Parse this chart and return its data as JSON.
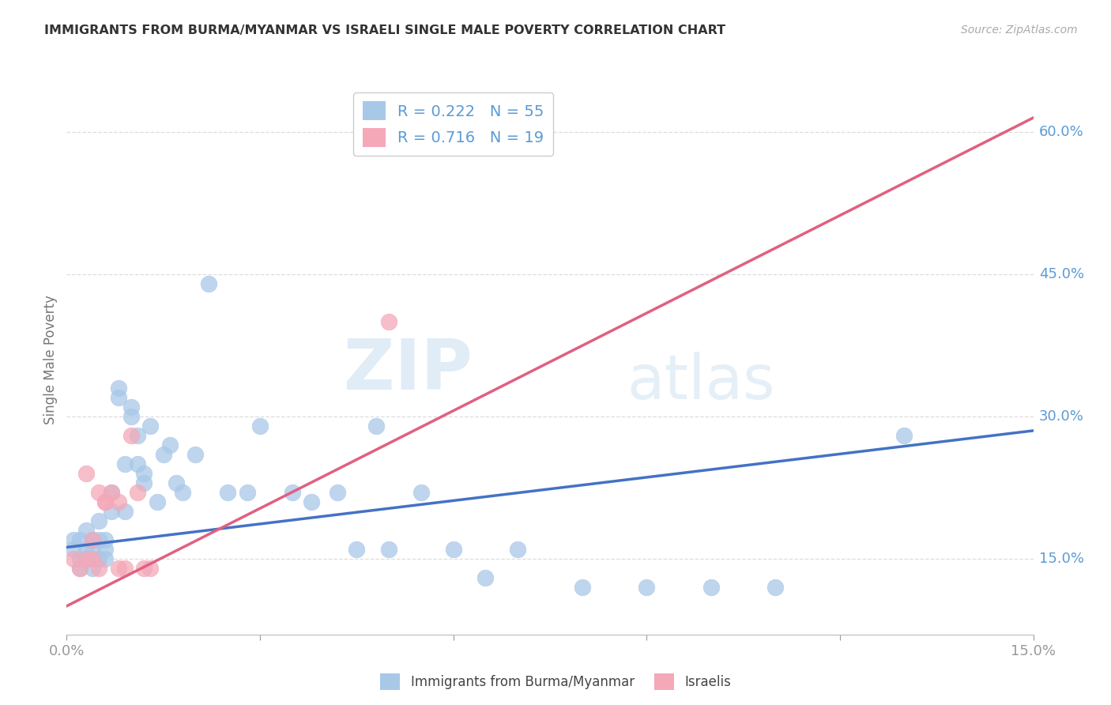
{
  "title": "IMMIGRANTS FROM BURMA/MYANMAR VS ISRAELI SINGLE MALE POVERTY CORRELATION CHART",
  "source": "Source: ZipAtlas.com",
  "ylabel": "Single Male Poverty",
  "xlim": [
    0.0,
    0.15
  ],
  "ylim": [
    0.07,
    0.65
  ],
  "yticks_right": [
    0.15,
    0.3,
    0.45,
    0.6
  ],
  "ytick_labels_right": [
    "15.0%",
    "30.0%",
    "45.0%",
    "60.0%"
  ],
  "blue_color": "#a8c8e8",
  "pink_color": "#f4a8b8",
  "blue_line_color": "#4472c4",
  "pink_line_color": "#e06080",
  "legend_R1": "R = 0.222",
  "legend_N1": "N = 55",
  "legend_R2": "R = 0.716",
  "legend_N2": "N = 19",
  "legend_label1": "Immigrants from Burma/Myanmar",
  "legend_label2": "Israelis",
  "watermark_zip": "ZIP",
  "watermark_atlas": "atlas",
  "blue_scatter_x": [
    0.001,
    0.001,
    0.002,
    0.002,
    0.002,
    0.003,
    0.003,
    0.003,
    0.004,
    0.004,
    0.004,
    0.005,
    0.005,
    0.005,
    0.006,
    0.006,
    0.006,
    0.007,
    0.007,
    0.008,
    0.008,
    0.009,
    0.009,
    0.01,
    0.01,
    0.011,
    0.011,
    0.012,
    0.012,
    0.013,
    0.014,
    0.015,
    0.016,
    0.017,
    0.018,
    0.02,
    0.022,
    0.025,
    0.028,
    0.03,
    0.035,
    0.038,
    0.042,
    0.045,
    0.048,
    0.05,
    0.055,
    0.06,
    0.065,
    0.07,
    0.08,
    0.09,
    0.1,
    0.11,
    0.13
  ],
  "blue_scatter_y": [
    0.17,
    0.16,
    0.15,
    0.17,
    0.14,
    0.16,
    0.18,
    0.15,
    0.17,
    0.14,
    0.16,
    0.17,
    0.15,
    0.19,
    0.16,
    0.17,
    0.15,
    0.2,
    0.22,
    0.33,
    0.32,
    0.25,
    0.2,
    0.31,
    0.3,
    0.28,
    0.25,
    0.24,
    0.23,
    0.29,
    0.21,
    0.26,
    0.27,
    0.23,
    0.22,
    0.26,
    0.44,
    0.22,
    0.22,
    0.29,
    0.22,
    0.21,
    0.22,
    0.16,
    0.29,
    0.16,
    0.22,
    0.16,
    0.13,
    0.16,
    0.12,
    0.12,
    0.12,
    0.12,
    0.28
  ],
  "pink_scatter_x": [
    0.001,
    0.002,
    0.003,
    0.003,
    0.004,
    0.004,
    0.005,
    0.005,
    0.006,
    0.006,
    0.007,
    0.008,
    0.008,
    0.009,
    0.01,
    0.011,
    0.012,
    0.013,
    0.05
  ],
  "pink_scatter_y": [
    0.15,
    0.14,
    0.15,
    0.24,
    0.15,
    0.17,
    0.14,
    0.22,
    0.21,
    0.21,
    0.22,
    0.21,
    0.14,
    0.14,
    0.28,
    0.22,
    0.14,
    0.14,
    0.4
  ],
  "blue_trend_x": [
    0.0,
    0.15
  ],
  "blue_trend_y": [
    0.162,
    0.285
  ],
  "pink_trend_x": [
    0.0,
    0.15
  ],
  "pink_trend_y": [
    0.1,
    0.615
  ],
  "background_color": "#ffffff",
  "grid_color": "#dddddd",
  "title_color": "#333333",
  "tick_color": "#5b9bd5"
}
